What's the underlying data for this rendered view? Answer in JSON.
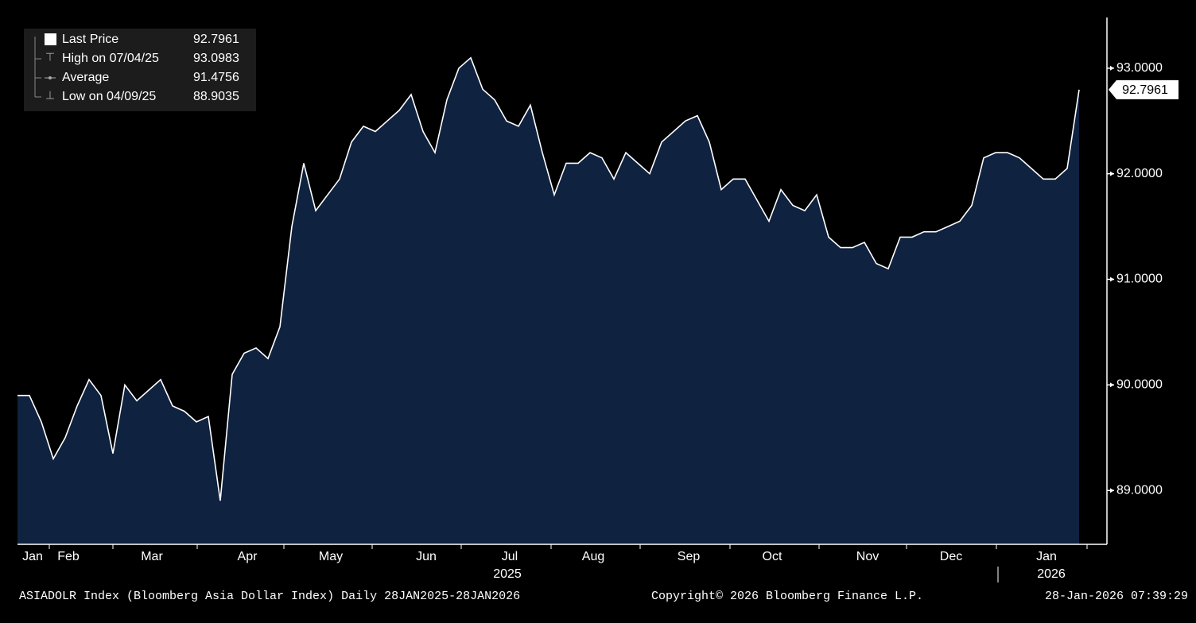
{
  "chart_data": {
    "type": "area",
    "legend": [
      {
        "label": "Last Price",
        "value": 92.7961
      },
      {
        "label": "High on 07/04/25",
        "value": 93.0983
      },
      {
        "label": "Average",
        "value": 91.4756
      },
      {
        "label": "Low on 04/09/25",
        "value": 88.9035
      }
    ],
    "categories": [
      null,
      "Jan",
      null,
      null,
      "Feb",
      null,
      null,
      null,
      null,
      null,
      null,
      "Mar",
      null,
      null,
      null,
      null,
      null,
      null,
      null,
      "Apr",
      null,
      null,
      null,
      null,
      null,
      null,
      "May",
      null,
      null,
      null,
      null,
      null,
      null,
      null,
      "Jun",
      null,
      null,
      null,
      null,
      null,
      null,
      "Jul",
      null,
      null,
      null,
      null,
      null,
      null,
      "Aug",
      null,
      null,
      null,
      null,
      null,
      null,
      null,
      "Sep",
      null,
      null,
      null,
      null,
      null,
      null,
      "Oct",
      null,
      null,
      null,
      null,
      null,
      null,
      null,
      "Nov",
      null,
      null,
      null,
      null,
      null,
      null,
      "Dec",
      null,
      null,
      null,
      null,
      null,
      null,
      null,
      "Jan",
      null,
      null,
      null
    ],
    "year_labels": [
      "2025",
      "2026"
    ],
    "series": [
      {
        "name": "Last Price",
        "color": "#ffffff",
        "fill": "#0f2240",
        "values": [
          89.9,
          89.9,
          89.65,
          89.3,
          89.5,
          89.8,
          90.05,
          89.9,
          89.35,
          90.0,
          89.85,
          89.95,
          90.05,
          89.8,
          89.75,
          89.65,
          89.7,
          88.9035,
          90.1,
          90.3,
          90.35,
          90.25,
          90.55,
          91.5,
          92.1,
          91.65,
          91.8,
          91.95,
          92.3,
          92.45,
          92.4,
          92.5,
          92.6,
          92.75,
          92.4,
          92.2,
          92.7,
          93.0,
          93.0983,
          92.8,
          92.7,
          92.5,
          92.45,
          92.65,
          92.2,
          91.8,
          92.1,
          92.1,
          92.2,
          92.15,
          91.95,
          92.2,
          92.1,
          92.0,
          92.3,
          92.4,
          92.5,
          92.55,
          92.3,
          91.85,
          91.95,
          91.95,
          91.75,
          91.55,
          91.85,
          91.7,
          91.65,
          91.8,
          91.4,
          91.3,
          91.3,
          91.35,
          91.15,
          91.1,
          91.4,
          91.4,
          91.45,
          91.45,
          91.5,
          91.55,
          91.7,
          92.15,
          92.2,
          92.2,
          92.15,
          92.05,
          91.95,
          91.95,
          92.05,
          92.7961
        ]
      }
    ],
    "ylim": [
      88.49,
      93.48
    ],
    "yticks": [
      {
        "value": 89,
        "label": "89.0000"
      },
      {
        "value": 90,
        "label": "90.0000"
      },
      {
        "value": 91,
        "label": "91.0000"
      },
      {
        "value": 92,
        "label": "92.0000"
      },
      {
        "value": 93,
        "label": "93.0000"
      }
    ],
    "footer": {
      "left": "ASIADOLR Index (Bloomberg Asia Dollar Index) Daily 28JAN2025-28JAN2026",
      "center": "Copyright© 2026 Bloomberg Finance L.P.",
      "right": "28-Jan-2026 07:39:29"
    }
  }
}
